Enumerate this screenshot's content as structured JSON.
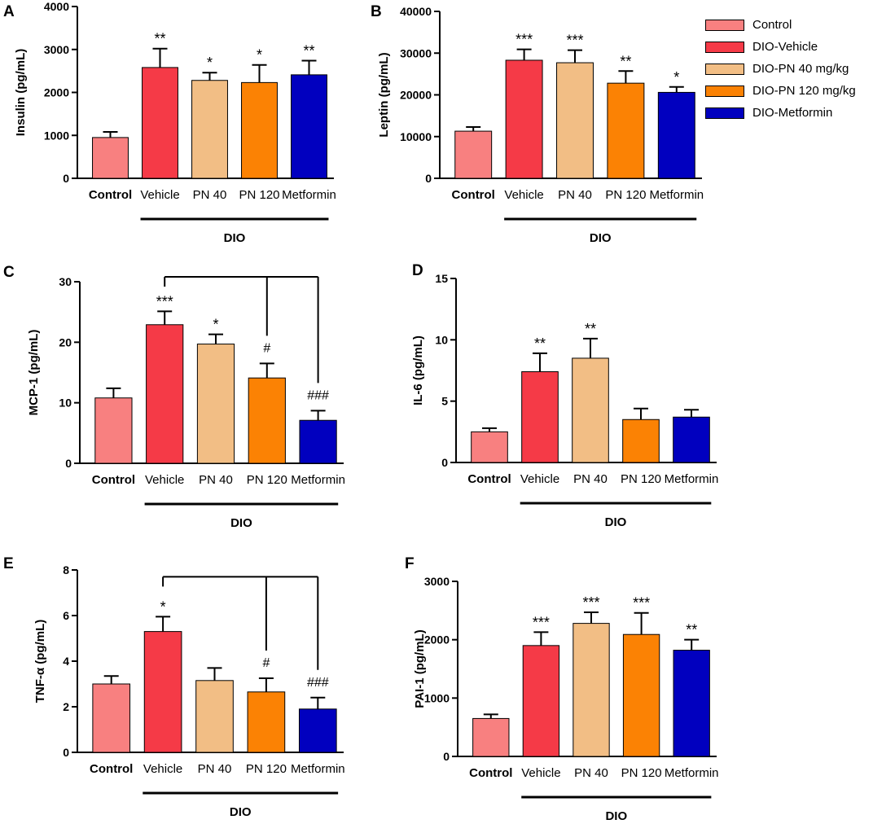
{
  "colors": {
    "Control": "#F88080",
    "DIO-Vehicle": "#F53A47",
    "DIO-PN 40 mg/kg": "#F2BE85",
    "DIO-PN 120 mg/kg": "#FB8204",
    "DIO-Metformin": "#0100BF"
  },
  "legend": {
    "items": [
      "Control",
      "DIO-Vehicle",
      "DIO-PN 40 mg/kg",
      "DIO-PN 120 mg/kg",
      "DIO-Metformin"
    ]
  },
  "chart_data": [
    {
      "panel": "A",
      "type": "bar",
      "ylabel": "Insulin (pg/mL)",
      "ylim": [
        0,
        4000
      ],
      "yticks": [
        0,
        1000,
        2000,
        3000,
        4000
      ],
      "categories": [
        "Control",
        "Vehicle",
        "PN 40",
        "PN 120",
        "Metformin"
      ],
      "bold_categories": [
        "Control"
      ],
      "group_label": "DIO",
      "values": [
        950,
        2580,
        2280,
        2230,
        2410
      ],
      "errors": [
        130,
        440,
        180,
        410,
        330
      ],
      "annotations": [
        "",
        "**",
        "*",
        "*",
        "**"
      ],
      "comparison_bracket": null
    },
    {
      "panel": "B",
      "type": "bar",
      "ylabel": "Leptin (pg/mL)",
      "ylim": [
        0,
        40000
      ],
      "yticks": [
        0,
        10000,
        20000,
        30000,
        40000
      ],
      "categories": [
        "Control",
        "Vehicle",
        "PN 40",
        "PN 120",
        "Metformin"
      ],
      "bold_categories": [
        "Control"
      ],
      "group_label": "DIO",
      "values": [
        11300,
        28300,
        27700,
        22800,
        20600
      ],
      "errors": [
        1000,
        2600,
        3000,
        2900,
        1300
      ],
      "annotations": [
        "",
        "***",
        "***",
        "**",
        "*"
      ],
      "comparison_bracket": null
    },
    {
      "panel": "C",
      "type": "bar",
      "ylabel": "MCP-1 (pg/mL)",
      "ylim": [
        0,
        30
      ],
      "yticks": [
        0,
        10,
        20,
        30
      ],
      "categories": [
        "Control",
        "Vehicle",
        "PN 40",
        "PN 120",
        "Metformin"
      ],
      "bold_categories": [
        "Control"
      ],
      "group_label": "DIO",
      "values": [
        10.8,
        22.9,
        19.7,
        14.1,
        7.1
      ],
      "errors": [
        1.6,
        2.2,
        1.6,
        2.4,
        1.6
      ],
      "annotations": [
        "",
        "***",
        "*",
        "#",
        "###"
      ],
      "comparison_bracket": {
        "from": 1,
        "to": [
          3,
          4
        ],
        "level": 30.8
      }
    },
    {
      "panel": "D",
      "type": "bar",
      "ylabel": "IL-6 (pg/mL)",
      "ylim": [
        0,
        15
      ],
      "yticks": [
        0,
        5,
        10,
        15
      ],
      "categories": [
        "Control",
        "Vehicle",
        "PN 40",
        "PN 120",
        "Metformin"
      ],
      "bold_categories": [
        "Control"
      ],
      "group_label": "DIO",
      "values": [
        2.5,
        7.4,
        8.5,
        3.5,
        3.7
      ],
      "errors": [
        0.3,
        1.5,
        1.6,
        0.9,
        0.6
      ],
      "annotations": [
        "",
        "**",
        "**",
        "",
        ""
      ],
      "comparison_bracket": null
    },
    {
      "panel": "E",
      "type": "bar",
      "ylabel": "TNF-α (pg/mL)",
      "ylim": [
        0,
        8
      ],
      "yticks": [
        0,
        2,
        4,
        6,
        8
      ],
      "categories": [
        "Control",
        "Vehicle",
        "PN 40",
        "PN 120",
        "Metformin"
      ],
      "bold_categories": [
        "Control"
      ],
      "group_label": "DIO",
      "values": [
        3.0,
        5.3,
        3.15,
        2.65,
        1.9
      ],
      "errors": [
        0.35,
        0.65,
        0.55,
        0.6,
        0.5
      ],
      "annotations": [
        "",
        "*",
        "",
        "#",
        "###"
      ],
      "comparison_bracket": {
        "from": 1,
        "to": [
          3,
          4
        ],
        "level": 7.7
      }
    },
    {
      "panel": "F",
      "type": "bar",
      "ylabel": "PAI-1 (pg/mL)",
      "ylim": [
        0,
        3000
      ],
      "yticks": [
        0,
        1000,
        2000,
        3000
      ],
      "categories": [
        "Control",
        "Vehicle",
        "PN 40",
        "PN 120",
        "Metformin"
      ],
      "bold_categories": [
        "Control"
      ],
      "group_label": "DIO",
      "values": [
        650,
        1900,
        2280,
        2090,
        1820
      ],
      "errors": [
        70,
        230,
        190,
        370,
        180
      ],
      "annotations": [
        "",
        "***",
        "***",
        "***",
        "**"
      ],
      "comparison_bracket": null
    }
  ]
}
